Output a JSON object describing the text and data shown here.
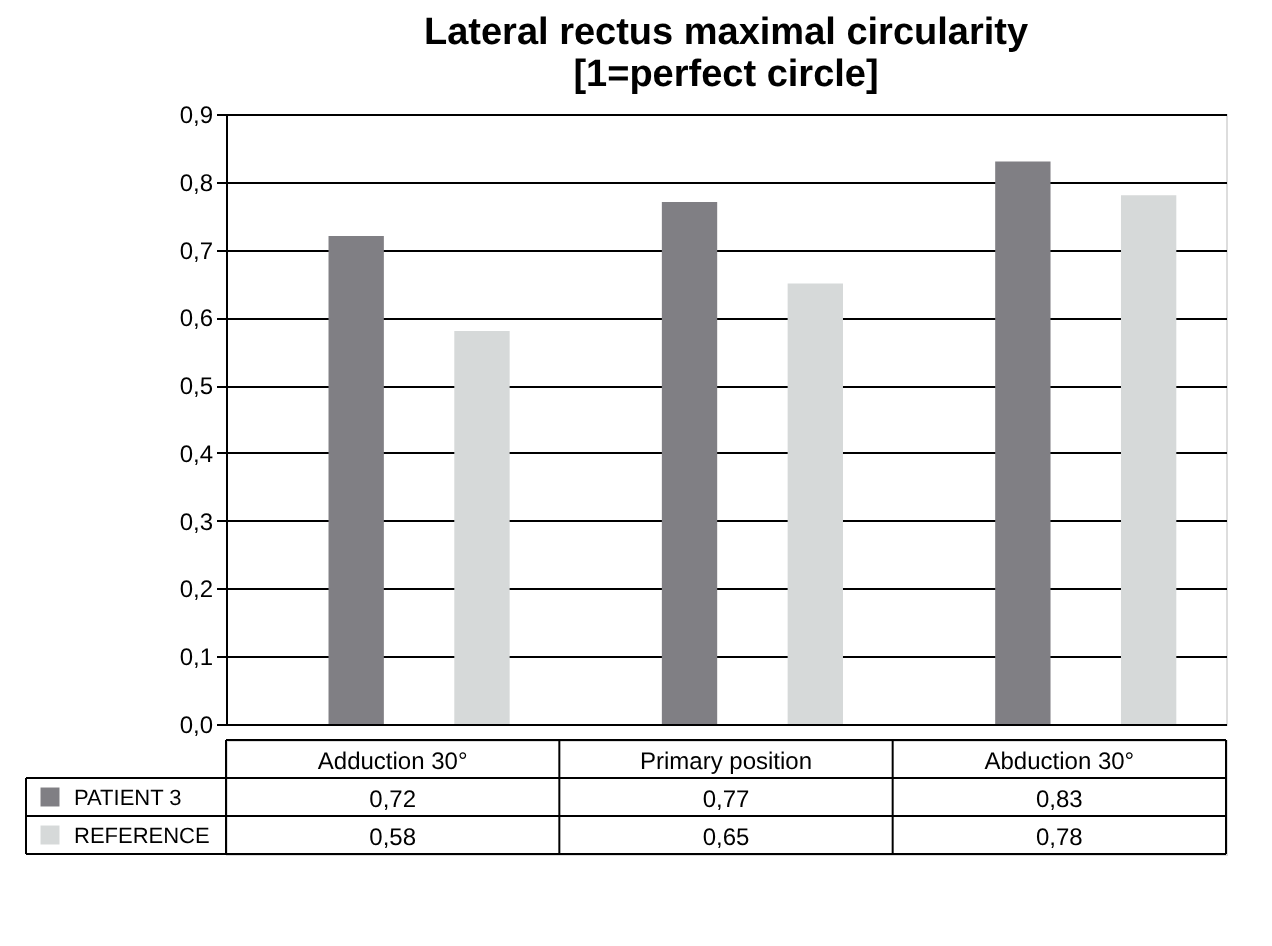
{
  "chart_data": {
    "type": "bar",
    "title": [
      "Lateral rectus maximal circularity",
      "[1=perfect circle]"
    ],
    "categories": [
      "Adduction 30°",
      "Primary position",
      "Abduction 30°"
    ],
    "series": [
      {
        "name": "PATIENT 3",
        "color": "#807f84",
        "values": [
          0.72,
          0.77,
          0.83
        ],
        "value_labels": [
          "0,72",
          "0,77",
          "0,83"
        ]
      },
      {
        "name": "REFERENCE",
        "color": "#d6d9d9",
        "values": [
          0.58,
          0.65,
          0.78
        ],
        "value_labels": [
          "0,58",
          "0,65",
          "0,78"
        ]
      }
    ],
    "ylim": [
      0,
      0.9
    ],
    "yticks": [
      {
        "value": 0,
        "label": "0,0"
      },
      {
        "value": 0.1,
        "label": "0,1"
      },
      {
        "value": 0.2,
        "label": "0,2"
      },
      {
        "value": 0.3,
        "label": "0,3"
      },
      {
        "value": 0.4,
        "label": "0,4"
      },
      {
        "value": 0.5,
        "label": "0,5"
      },
      {
        "value": 0.6,
        "label": "0,6"
      },
      {
        "value": 0.7,
        "label": "0,7"
      },
      {
        "value": 0.8,
        "label": "0,8"
      },
      {
        "value": 0.9,
        "label": "0,9"
      }
    ],
    "grid": "y",
    "legend": "bottom"
  }
}
